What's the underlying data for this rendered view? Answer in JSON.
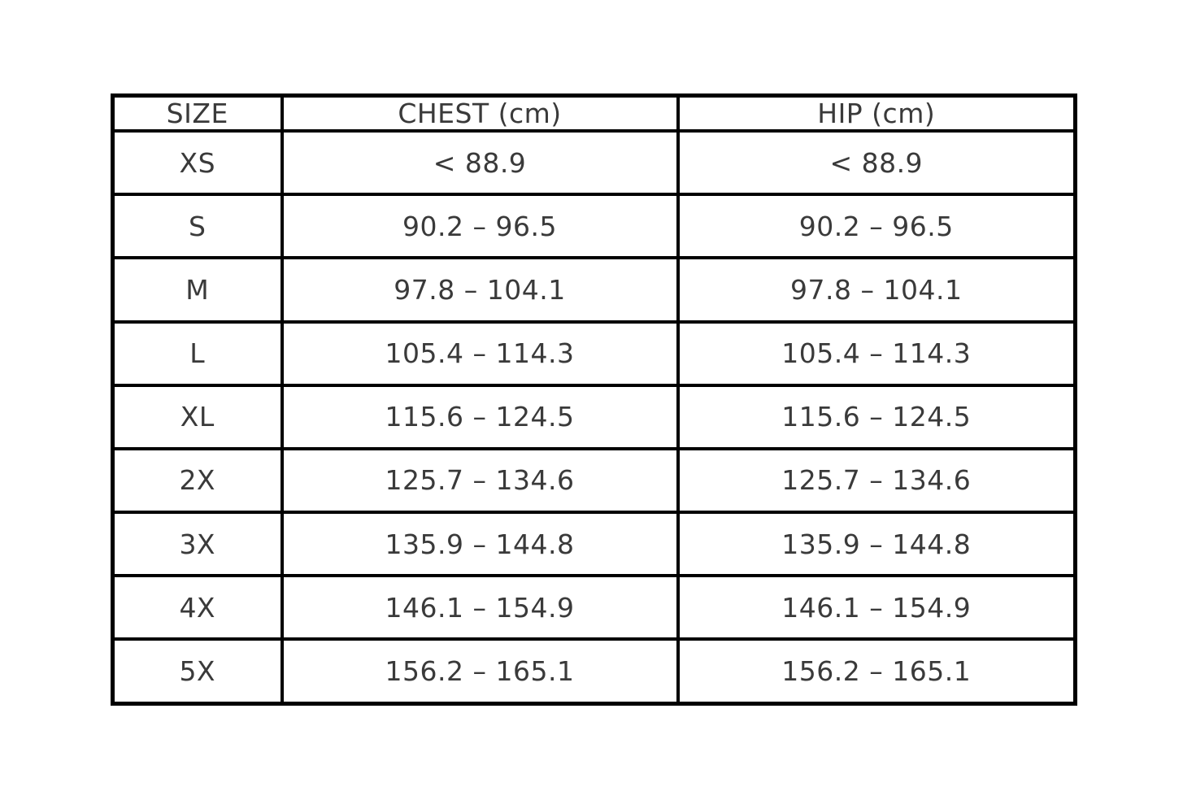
{
  "chart_data": {
    "type": "table",
    "title": "",
    "columns": [
      "SIZE",
      "CHEST (cm)",
      "HIP (cm)"
    ],
    "rows": [
      {
        "size": "XS",
        "chest": "< 88.9",
        "hip": "< 88.9"
      },
      {
        "size": "S",
        "chest": "90.2 – 96.5",
        "hip": "90.2 – 96.5"
      },
      {
        "size": "M",
        "chest": "97.8 – 104.1",
        "hip": "97.8 – 104.1"
      },
      {
        "size": "L",
        "chest": "105.4 – 114.3",
        "hip": "105.4 – 114.3"
      },
      {
        "size": "XL",
        "chest": "115.6 – 124.5",
        "hip": "115.6 – 124.5"
      },
      {
        "size": "2X",
        "chest": "125.7 – 134.6",
        "hip": "125.7 – 134.6"
      },
      {
        "size": "3X",
        "chest": "135.9 – 144.8",
        "hip": "135.9 – 144.8"
      },
      {
        "size": "4X",
        "chest": "146.1 – 154.9",
        "hip": "146.1 – 154.9"
      },
      {
        "size": "5X",
        "chest": "156.2 – 165.1",
        "hip": "156.2 – 165.1"
      }
    ],
    "colors": {
      "border": "#000000",
      "text": "#3a3a3a",
      "background": "#ffffff"
    },
    "layout": {
      "grid": "full-borders",
      "text_align": "center"
    }
  }
}
